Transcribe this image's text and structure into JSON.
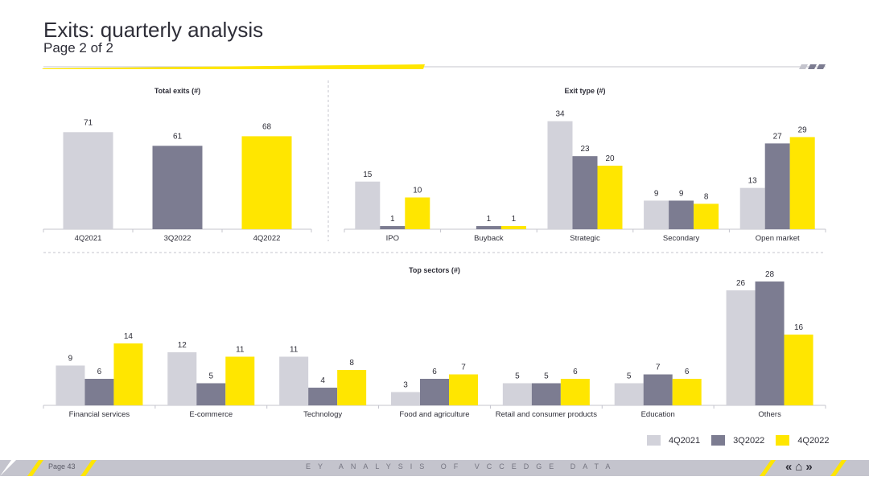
{
  "header": {
    "title": "Exits: quarterly analysis",
    "subtitle": "Page 2 of 2"
  },
  "colors": {
    "4Q2021": "#d2d2da",
    "3Q2022": "#7c7c91",
    "4Q2022": "#ffe600",
    "accent": "#ffe600",
    "text": "#2e2e38"
  },
  "legend": {
    "items": [
      {
        "label": "4Q2021",
        "color": "#d2d2da"
      },
      {
        "label": "3Q2022",
        "color": "#7c7c91"
      },
      {
        "label": "4Q2022",
        "color": "#ffe600"
      }
    ]
  },
  "chart_data": [
    {
      "type": "bar",
      "title": "Total exits (#)",
      "categories": [
        "4Q2021",
        "3Q2022",
        "4Q2022"
      ],
      "values": [
        71,
        61,
        68
      ],
      "colors": [
        "#d2d2da",
        "#7c7c91",
        "#ffe600"
      ],
      "ylim": [
        0,
        80
      ]
    },
    {
      "type": "bar",
      "title": "Exit type (#)",
      "categories": [
        "IPO",
        "Buyback",
        "Strategic",
        "Secondary",
        "Open market"
      ],
      "series": [
        {
          "name": "4Q2021",
          "values": [
            15,
            0,
            34,
            9,
            13
          ]
        },
        {
          "name": "3Q2022",
          "values": [
            1,
            1,
            23,
            9,
            27
          ]
        },
        {
          "name": "4Q2022",
          "values": [
            10,
            1,
            20,
            8,
            29
          ]
        }
      ],
      "labels": [
        [
          "15",
          "",
          "34",
          "9",
          "13"
        ],
        [
          "1",
          "1",
          "23",
          "9",
          "27"
        ],
        [
          "10",
          "1",
          "20",
          "8",
          "29"
        ]
      ],
      "ylim": [
        0,
        40
      ]
    },
    {
      "type": "bar",
      "title": "Top sectors (#)",
      "categories": [
        "Financial services",
        "E-commerce",
        "Technology",
        "Food and agriculture",
        "Retail and consumer products",
        "Education",
        "Others"
      ],
      "series": [
        {
          "name": "4Q2021",
          "values": [
            9,
            12,
            11,
            3,
            5,
            5,
            26
          ]
        },
        {
          "name": "3Q2022",
          "values": [
            6,
            5,
            4,
            6,
            5,
            7,
            28
          ]
        },
        {
          "name": "4Q2022",
          "values": [
            14,
            11,
            8,
            7,
            6,
            6,
            16
          ]
        }
      ],
      "ylim": [
        0,
        32
      ]
    }
  ],
  "footer": {
    "page_label": "Page 43",
    "center_text": "EY ANALYSIS OF VCCEDGE DATA",
    "nav": {
      "prev": "«",
      "home": "⌂",
      "next": "»"
    }
  }
}
